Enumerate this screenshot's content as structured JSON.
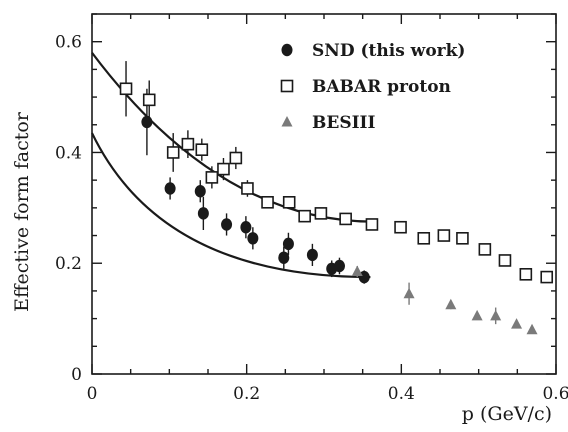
{
  "chart_data": {
    "type": "scatter",
    "xlabel": "p (GeV/c)",
    "ylabel": "Effective form factor",
    "xlim": [
      0,
      0.6
    ],
    "ylim": [
      0,
      0.65
    ],
    "x_ticks": [
      0,
      0.2,
      0.4,
      0.6
    ],
    "x_tick_labels": [
      "0",
      "0.2",
      "0.4",
      "0.6"
    ],
    "y_ticks": [
      0,
      0.2,
      0.4,
      0.6
    ],
    "y_tick_labels": [
      "0",
      "0.2",
      "0.4",
      "0.6"
    ],
    "grid": false,
    "legend_position": "top-right",
    "series": [
      {
        "name": "SND (this work)",
        "marker": "filled-circle",
        "color": "#1a1a1a",
        "x": [
          0.071,
          0.101,
          0.14,
          0.144,
          0.174,
          0.199,
          0.208,
          0.248,
          0.254,
          0.285,
          0.31,
          0.32,
          0.352
        ],
        "y": [
          0.455,
          0.335,
          0.33,
          0.29,
          0.27,
          0.265,
          0.245,
          0.21,
          0.235,
          0.215,
          0.19,
          0.195,
          0.175
        ],
        "err": [
          0.06,
          0.02,
          0.02,
          0.03,
          0.02,
          0.02,
          0.02,
          0.02,
          0.02,
          0.02,
          0.015,
          0.015,
          0.012
        ]
      },
      {
        "name": "BABAR proton",
        "marker": "open-square",
        "color": "#1a1a1a",
        "x": [
          0.044,
          0.074,
          0.105,
          0.124,
          0.142,
          0.155,
          0.17,
          0.186,
          0.201,
          0.227,
          0.255,
          0.275,
          0.296,
          0.328,
          0.362,
          0.399,
          0.429,
          0.455,
          0.479,
          0.508,
          0.534,
          0.561,
          0.588
        ],
        "y": [
          0.515,
          0.495,
          0.4,
          0.415,
          0.405,
          0.355,
          0.37,
          0.39,
          0.335,
          0.31,
          0.31,
          0.285,
          0.29,
          0.28,
          0.27,
          0.265,
          0.245,
          0.25,
          0.245,
          0.225,
          0.205,
          0.18,
          0.175
        ],
        "err": [
          0.05,
          0.035,
          0.035,
          0.025,
          0.02,
          0.02,
          0.02,
          0.02,
          0.015,
          0.01,
          0.01,
          0.01,
          0.01,
          0.008,
          0.008,
          0.008,
          0.008,
          0.008,
          0.008,
          0.008,
          0.008,
          0.008,
          0.008
        ]
      },
      {
        "name": "BESIII",
        "marker": "filled-triangle",
        "color": "#7a7a7a",
        "x": [
          0.343,
          0.41,
          0.464,
          0.498,
          0.522,
          0.549,
          0.569
        ],
        "y": [
          0.185,
          0.145,
          0.125,
          0.105,
          0.105,
          0.09,
          0.08
        ],
        "err": [
          0.01,
          0.02,
          0.008,
          0.006,
          0.015,
          0.006,
          0.006
        ]
      }
    ],
    "fit_curves": [
      {
        "start": [
          0.0,
          0.58
        ],
        "end": [
          0.365,
          0.275
        ],
        "curvature": 0.45
      },
      {
        "start": [
          0.0,
          0.435
        ],
        "end": [
          0.36,
          0.175
        ],
        "curvature": 0.25
      }
    ]
  }
}
